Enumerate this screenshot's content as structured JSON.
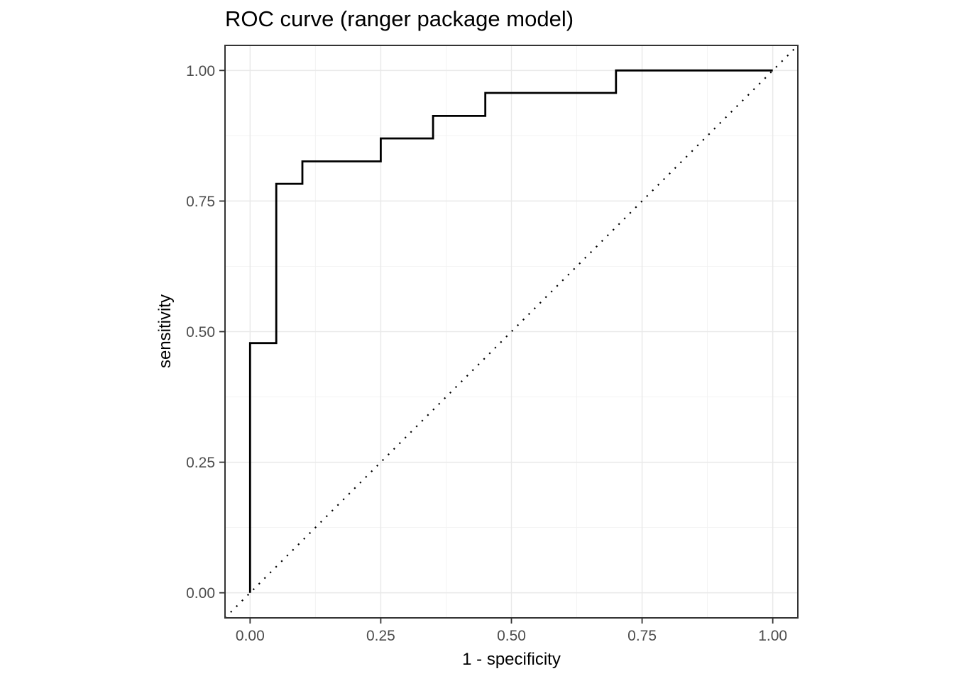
{
  "chart_data": {
    "type": "line",
    "variant": "roc-step-curve",
    "title": "ROC curve (ranger package model)",
    "xlabel": "1 - specificity",
    "ylabel": "sensitivity",
    "xlim": [
      -0.048,
      1.048
    ],
    "ylim": [
      -0.048,
      1.048
    ],
    "x_major_ticks": [
      0,
      0.25,
      0.5,
      0.75,
      1
    ],
    "x_tick_labels": [
      "0.00",
      "0.25",
      "0.50",
      "0.75",
      "1.00"
    ],
    "y_major_ticks": [
      0,
      0.25,
      0.5,
      0.75,
      1
    ],
    "y_tick_labels": [
      "0.00",
      "0.25",
      "0.50",
      "0.75",
      "1.00"
    ],
    "x_minor_ticks": [
      0.125,
      0.375,
      0.625,
      0.875
    ],
    "y_minor_ticks": [
      0.125,
      0.375,
      0.625,
      0.875
    ],
    "grid": "major and minor gridlines on white panel",
    "legend_position": "none",
    "series": [
      {
        "name": "ROC curve",
        "line_style": "solid",
        "color": "#000000",
        "points": [
          [
            0,
            0
          ],
          [
            0,
            0.478
          ],
          [
            0.05,
            0.478
          ],
          [
            0.05,
            0.783
          ],
          [
            0.1,
            0.783
          ],
          [
            0.1,
            0.826
          ],
          [
            0.25,
            0.826
          ],
          [
            0.25,
            0.87
          ],
          [
            0.35,
            0.87
          ],
          [
            0.35,
            0.913
          ],
          [
            0.45,
            0.913
          ],
          [
            0.45,
            0.957
          ],
          [
            0.7,
            0.957
          ],
          [
            0.7,
            1
          ],
          [
            1,
            1
          ]
        ]
      },
      {
        "name": "chance diagonal",
        "line_style": "dotted",
        "color": "#000000",
        "points": [
          [
            0,
            0
          ],
          [
            1,
            1
          ]
        ],
        "extends_to_panel_edges": true
      }
    ],
    "colors": {
      "panel_background": "#ffffff",
      "panel_border": "#333333",
      "grid_major": "#e9e9e9",
      "grid_minor": "#f2f2f2",
      "tick_mark": "#333333",
      "tick_label": "#4d4d4d",
      "axis_title": "#000000",
      "title": "#000000",
      "roc_line": "#000000",
      "diagonal_line": "#000000"
    }
  }
}
